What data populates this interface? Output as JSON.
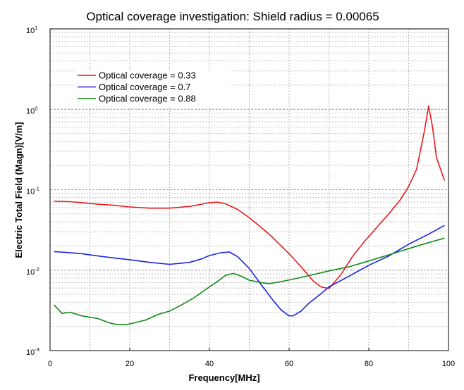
{
  "chart_data": {
    "type": "line",
    "title": "Optical coverage investigation: Shield radius = 0.00065",
    "xlabel": "Frequency[MHz]",
    "ylabel": "Electric Total Field (Magn)[V/m]",
    "xlim": [
      0,
      100
    ],
    "ylim": [
      0.001,
      10
    ],
    "yscale": "log",
    "grid": true,
    "legend_position": "top-left",
    "x_ticks": [
      {
        "value": 0,
        "label": "0"
      },
      {
        "value": 20,
        "label": "20"
      },
      {
        "value": 40,
        "label": "40"
      },
      {
        "value": 60,
        "label": "60"
      },
      {
        "value": 80,
        "label": "80"
      },
      {
        "value": 100,
        "label": "100"
      }
    ],
    "y_ticks": [
      {
        "value": 0.001,
        "base": "10",
        "exp": "-3"
      },
      {
        "value": 0.01,
        "base": "10",
        "exp": "-2"
      },
      {
        "value": 0.1,
        "base": "10",
        "exp": "-1"
      },
      {
        "value": 1,
        "base": "10",
        "exp": "0"
      },
      {
        "value": 10,
        "base": "10",
        "exp": "1"
      }
    ],
    "series": [
      {
        "name": "Optical coverage = 0.33",
        "color": "#e8191c",
        "x": [
          1,
          5,
          8,
          12,
          16,
          20,
          25,
          30,
          35,
          38,
          40,
          42,
          44,
          47,
          50,
          55,
          60,
          63,
          66,
          68,
          70,
          73,
          76,
          79,
          82,
          85,
          88,
          90,
          92,
          94,
          95,
          96,
          97,
          99
        ],
        "y": [
          0.072,
          0.071,
          0.069,
          0.066,
          0.064,
          0.061,
          0.059,
          0.059,
          0.062,
          0.066,
          0.069,
          0.07,
          0.067,
          0.057,
          0.045,
          0.028,
          0.016,
          0.011,
          0.0074,
          0.0062,
          0.0059,
          0.0088,
          0.015,
          0.023,
          0.034,
          0.05,
          0.076,
          0.11,
          0.18,
          0.55,
          1.1,
          0.6,
          0.25,
          0.13
        ]
      },
      {
        "name": "Optical coverage = 0.7",
        "color": "#1c24e8",
        "x": [
          1,
          5,
          8,
          12,
          16,
          20,
          25,
          30,
          35,
          38,
          40,
          43,
          45,
          47,
          50,
          53,
          56,
          58,
          60,
          61,
          63,
          65,
          68,
          70,
          75,
          80,
          85,
          90,
          95,
          99
        ],
        "y": [
          0.017,
          0.0165,
          0.016,
          0.015,
          0.0142,
          0.0135,
          0.0125,
          0.0118,
          0.0125,
          0.0138,
          0.0152,
          0.0165,
          0.0168,
          0.0148,
          0.0105,
          0.0066,
          0.0042,
          0.0032,
          0.0027,
          0.0027,
          0.0031,
          0.0039,
          0.0051,
          0.0062,
          0.0084,
          0.0115,
          0.015,
          0.021,
          0.028,
          0.036
        ]
      },
      {
        "name": "Optical coverage  = 0.88",
        "color": "#118a18",
        "x": [
          1,
          3,
          5,
          8,
          12,
          15,
          17,
          19,
          21,
          24,
          27,
          30,
          33,
          36,
          40,
          42,
          44,
          46,
          48,
          50,
          53,
          55,
          58,
          62,
          66,
          70,
          75,
          80,
          85,
          90,
          95,
          99
        ],
        "y": [
          0.0037,
          0.0029,
          0.003,
          0.0027,
          0.0025,
          0.0022,
          0.0021,
          0.0021,
          0.0022,
          0.0024,
          0.0028,
          0.0031,
          0.0037,
          0.0045,
          0.0062,
          0.0072,
          0.0086,
          0.0091,
          0.0084,
          0.0075,
          0.007,
          0.0068,
          0.0072,
          0.0079,
          0.0088,
          0.0098,
          0.011,
          0.013,
          0.0155,
          0.0185,
          0.022,
          0.025
        ]
      }
    ]
  }
}
